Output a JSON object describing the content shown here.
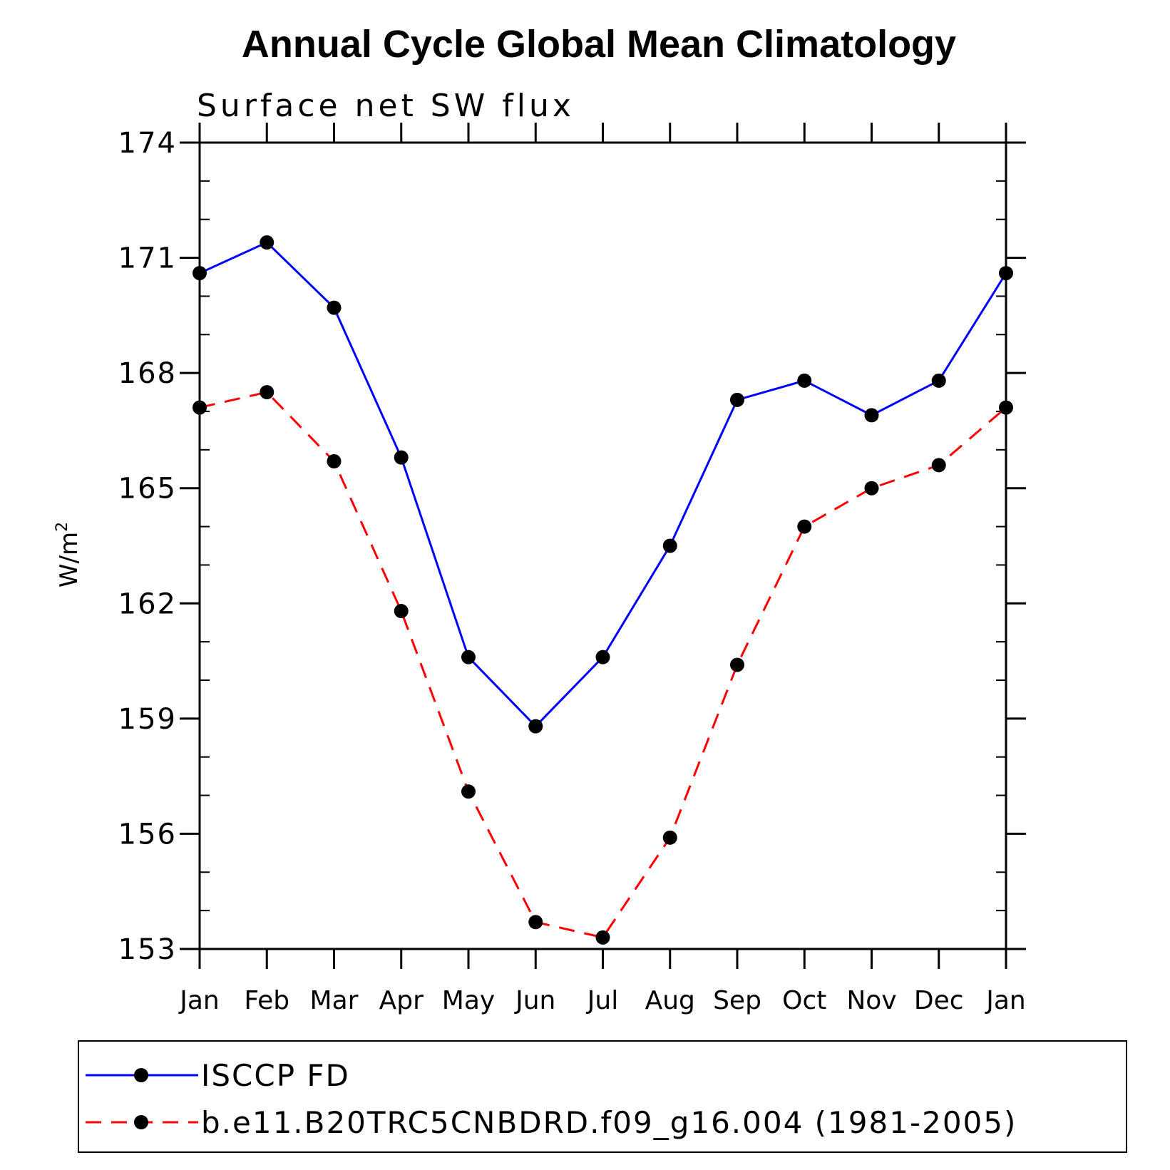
{
  "chart_data": {
    "type": "line",
    "title": "Annual Cycle Global Mean Climatology",
    "subtitle": "Surface net SW flux",
    "ylabel": "W/m",
    "ylabel_sup": "2",
    "ylim": [
      153,
      174
    ],
    "yticks": [
      153,
      156,
      159,
      162,
      165,
      168,
      171,
      174
    ],
    "categories": [
      "Jan",
      "Feb",
      "Mar",
      "Apr",
      "May",
      "Jun",
      "Jul",
      "Aug",
      "Sep",
      "Oct",
      "Nov",
      "Dec",
      "Jan"
    ],
    "grid": false,
    "legend_position": "bottom",
    "series": [
      {
        "name": "ISCCP FD",
        "color": "#0000ff",
        "dash": "solid",
        "values": [
          170.6,
          171.4,
          169.7,
          165.8,
          160.6,
          158.8,
          160.6,
          163.5,
          167.3,
          167.8,
          166.9,
          167.8,
          170.6
        ]
      },
      {
        "name": "b.e11.B20TRC5CNBDRD.f09_g16.004 (1981-2005)",
        "color": "#ff0000",
        "dash": "dashed",
        "values": [
          167.1,
          167.5,
          165.7,
          161.8,
          157.1,
          153.7,
          153.3,
          155.9,
          160.4,
          164.0,
          165.0,
          165.6,
          167.1
        ]
      }
    ]
  }
}
